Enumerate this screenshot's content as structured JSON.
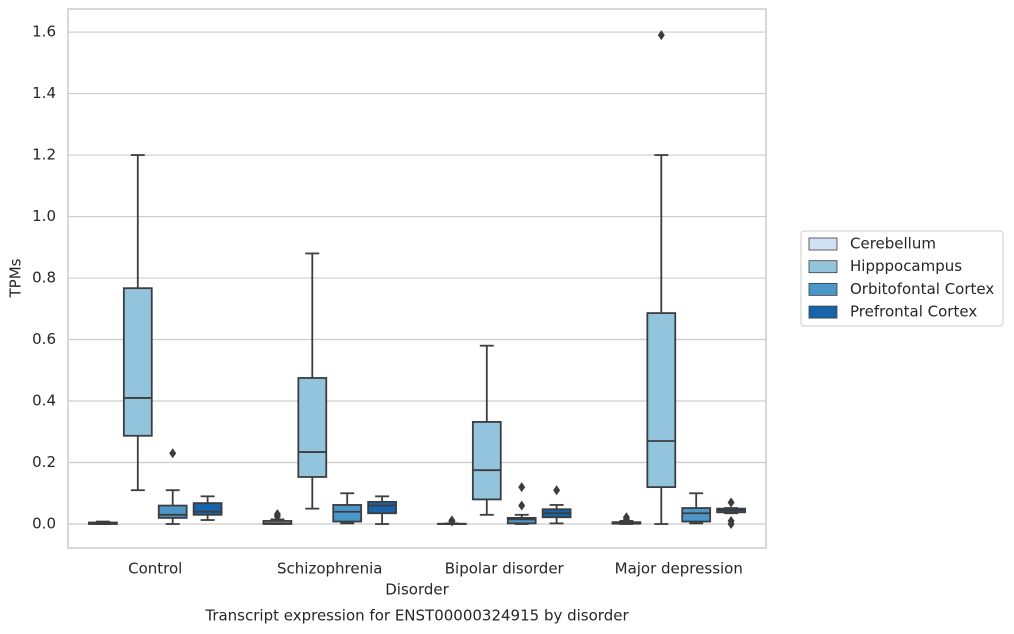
{
  "chart_data": {
    "type": "box",
    "title": "Transcript expression for ENST00000324915 by disorder",
    "x_label": "Disorder",
    "y_label": "TPMs",
    "categories": [
      "Control",
      "Schizophrenia",
      "Bipolar disorder",
      "Major depression"
    ],
    "ylim": [
      -0.078,
      1.675
    ],
    "yticks": [
      {
        "value": 0,
        "label": "0.0"
      },
      0.2,
      0.4,
      0.6,
      0.8,
      {
        "value": 1,
        "label": "1.0"
      },
      1.2,
      1.4,
      1.6
    ],
    "grid": true,
    "legend": "right",
    "series": [
      {
        "name": "Cerebellum",
        "color": "#cfe1f2",
        "values": [
          [
            0,
            0,
            0.002,
            0.005,
            0.008
          ],
          [
            0,
            0,
            0.003,
            0.01,
            0.015
          ],
          [
            0,
            0,
            0,
            0.001,
            0.002
          ],
          [
            0,
            0.001,
            0.003,
            0.006,
            0.01
          ]
        ],
        "outliers": [
          [],
          [
            0.025,
            0.032
          ],
          [
            0.008,
            0.012
          ],
          [
            0.015,
            0.022
          ]
        ]
      },
      {
        "name": "Hipppocampus",
        "color": "#93c4de",
        "values": [
          [
            0.11,
            0.287,
            0.41,
            0.767,
            1.2
          ],
          [
            0.05,
            0.153,
            0.234,
            0.475,
            0.88
          ],
          [
            0.03,
            0.08,
            0.175,
            0.332,
            0.58
          ],
          [
            0,
            0.12,
            0.27,
            0.686,
            1.2
          ]
        ],
        "outliers": [
          [],
          [],
          [],
          [
            1.59
          ]
        ]
      },
      {
        "name": "Orbitofontal Cortex",
        "color": "#4a98c9",
        "values": [
          [
            0,
            0.02,
            0.03,
            0.06,
            0.11
          ],
          [
            0.002,
            0.008,
            0.04,
            0.062,
            0.1
          ],
          [
            0,
            0.002,
            0.015,
            0.02,
            0.03
          ],
          [
            0.002,
            0.008,
            0.035,
            0.052,
            0.1
          ]
        ],
        "outliers": [
          [
            0.23
          ],
          [],
          [
            0.06,
            0.12
          ],
          []
        ]
      },
      {
        "name": "Prefrontal Cortex",
        "color": "#1764ab",
        "values": [
          [
            0.013,
            0.03,
            0.04,
            0.068,
            0.09
          ],
          [
            0,
            0.035,
            0.06,
            0.072,
            0.09
          ],
          [
            0.002,
            0.022,
            0.035,
            0.048,
            0.062
          ],
          [
            0.035,
            0.038,
            0.045,
            0.05,
            0.052
          ]
        ],
        "outliers": [
          [],
          [],
          [
            0.11
          ],
          [
            0.07,
            0.01,
            0
          ]
        ]
      }
    ]
  }
}
